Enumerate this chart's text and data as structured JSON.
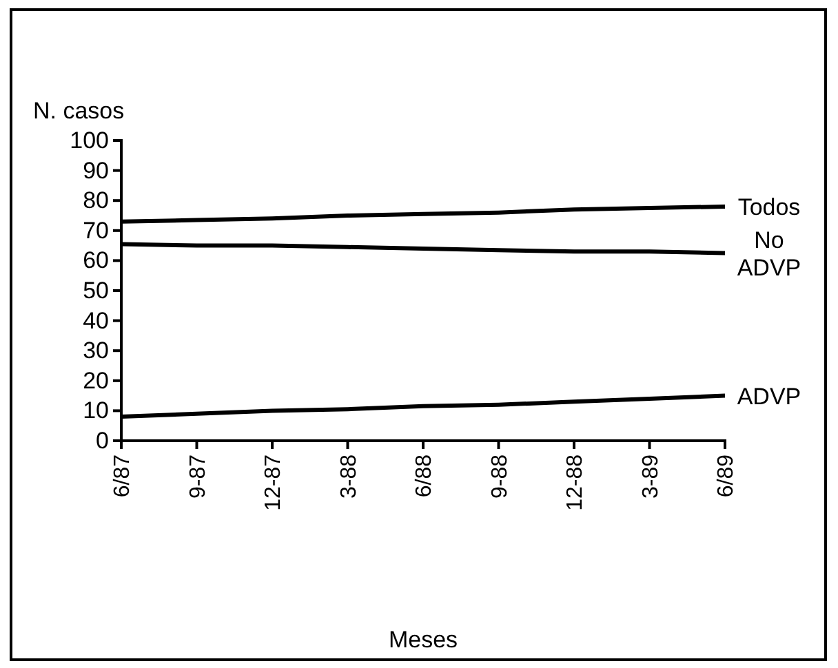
{
  "chart_data": {
    "type": "line",
    "ylabel": "N. casos",
    "xlabel": "Meses",
    "categories": [
      "6/87",
      "9-87",
      "12-87",
      "3-88",
      "6/88",
      "9-88",
      "12-88",
      "3-89",
      "6/89"
    ],
    "ylim": [
      0,
      100
    ],
    "yticks": [
      0,
      10,
      20,
      30,
      40,
      50,
      60,
      70,
      80,
      90,
      100
    ],
    "grid": false,
    "legend": false,
    "marker": "none",
    "line_style": "solid",
    "series": [
      {
        "name": "Todos",
        "color": "#000000",
        "values": [
          73,
          73.5,
          74,
          75,
          75.5,
          76,
          77,
          77.5,
          78
        ]
      },
      {
        "name": "No ADVP",
        "color": "#000000",
        "values": [
          65.5,
          65,
          65,
          64.5,
          64,
          63.5,
          63,
          63,
          62.5
        ]
      },
      {
        "name": "ADVP",
        "color": "#000000",
        "values": [
          8,
          9,
          10,
          10.5,
          11.5,
          12,
          13,
          14,
          15
        ]
      }
    ]
  }
}
